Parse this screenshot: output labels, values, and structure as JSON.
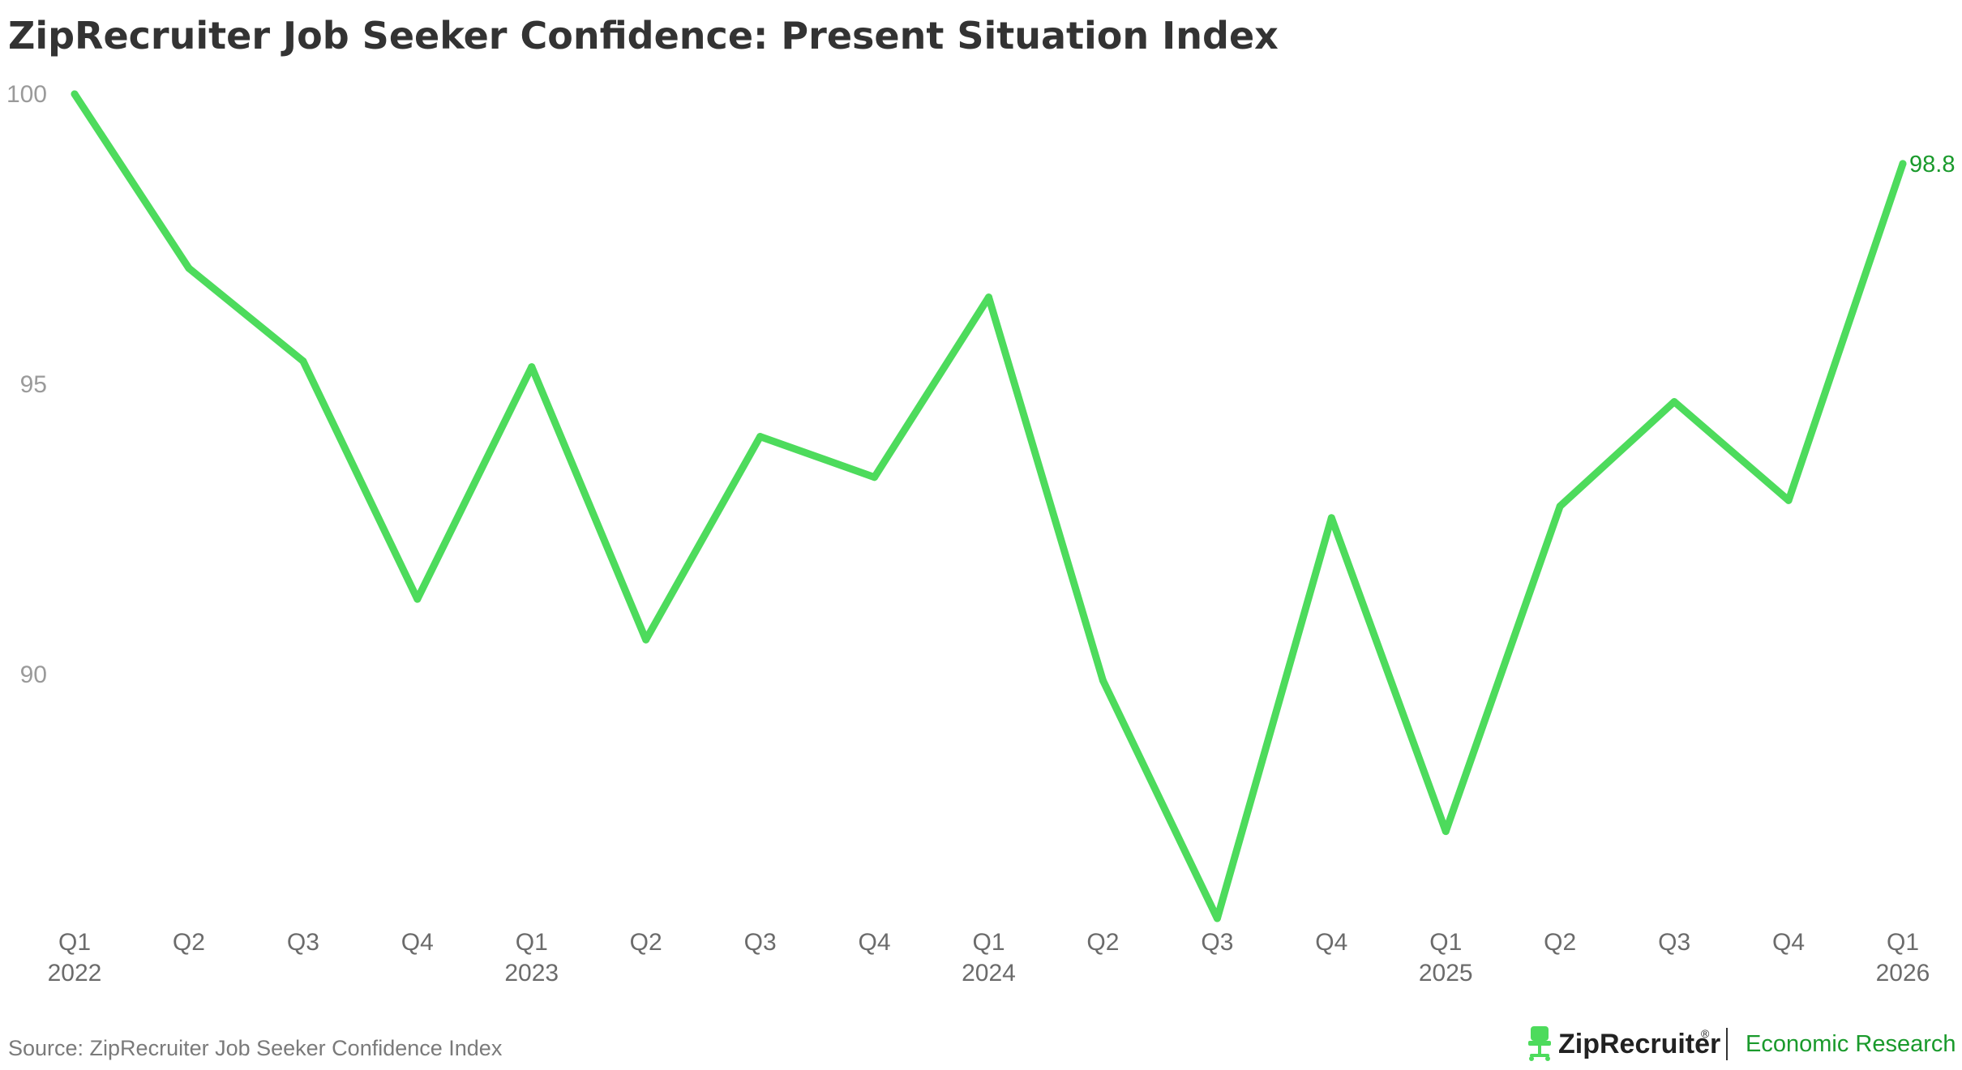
{
  "chart_data": {
    "type": "line",
    "title": "ZipRecruiter Job Seeker Confidence: Present Situation Index",
    "xlabel": "",
    "ylabel": "",
    "ylim": [
      85.8,
      100
    ],
    "yticks": [
      "100",
      "95",
      "90"
    ],
    "ytick_values": [
      100,
      95,
      90
    ],
    "grid": false,
    "legend": "none",
    "categories": [
      "Q1",
      "Q2",
      "Q3",
      "Q4",
      "Q1",
      "Q2",
      "Q3",
      "Q4",
      "Q1",
      "Q2",
      "Q3",
      "Q4",
      "Q1",
      "Q2",
      "Q3",
      "Q4",
      "Q1"
    ],
    "years": [
      "2022",
      "",
      "",
      "",
      "2023",
      "",
      "",
      "",
      "2024",
      "",
      "",
      "",
      "2025",
      "",
      "",
      "",
      "2026"
    ],
    "series": [
      {
        "values": [
          100.0,
          97.0,
          95.4,
          91.3,
          95.3,
          90.6,
          94.1,
          93.4,
          96.5,
          89.9,
          85.8,
          92.7,
          87.3,
          92.9,
          94.7,
          93.0,
          98.8
        ]
      }
    ],
    "end_label": "98.8",
    "line_color": "#4ddb5c",
    "end_label_color": "#1a9a2c"
  },
  "footer": {
    "source": "Source: ZipRecruiter Job Seeker Confidence Index",
    "brand": "ZipRecruiter",
    "trademark": "®",
    "research": "Economic Research",
    "brand_icon": "chair-icon",
    "brand_color": "#4ddb5c",
    "research_color": "#1a9a2c"
  }
}
